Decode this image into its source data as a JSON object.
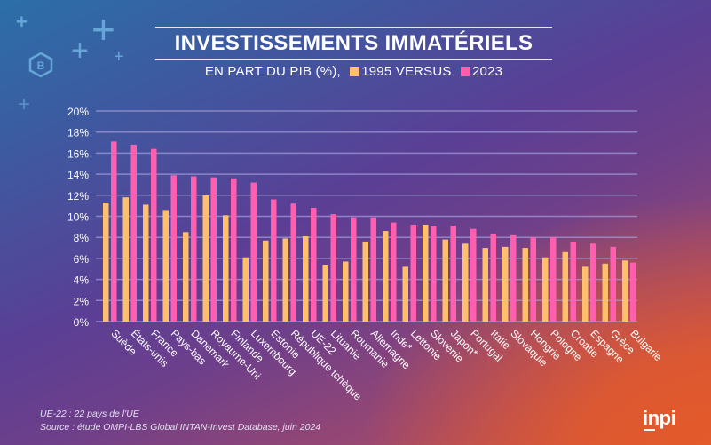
{
  "header": {
    "title": "INVESTISSEMENTS IMMATÉRIELS",
    "subtitle_prefix": "EN PART DU PIB (%),",
    "legend_1995": "1995 VERSUS",
    "legend_2023": "2023"
  },
  "decorations": {
    "badge_letter": "B",
    "plus_glyph": "+"
  },
  "colors": {
    "series_1995": "#ffbf6b",
    "series_2023": "#ff5fae",
    "gridline": "#9f9ad6",
    "text": "#ffffff"
  },
  "chart_data": {
    "type": "bar",
    "title": "INVESTISSEMENTS IMMATÉRIELS",
    "subtitle": "EN PART DU PIB (%), 1995 VERSUS 2023",
    "xlabel": "",
    "ylabel": "",
    "ylim": [
      0,
      20
    ],
    "yticks": [
      0,
      2,
      4,
      6,
      8,
      10,
      12,
      14,
      16,
      18,
      20
    ],
    "ytick_labels": [
      "0%",
      "2%",
      "4%",
      "6%",
      "8%",
      "10%",
      "12%",
      "14%",
      "16%",
      "18%",
      "20%"
    ],
    "grid": true,
    "legend_position": "top-center",
    "categories": [
      "Suède",
      "États-unis",
      "France",
      "Pays-bas",
      "Danemark",
      "Royaume-Uni",
      "Finlande",
      "Luxembourg",
      "Estonie",
      "République tchèque",
      "UE-22",
      "Lituanie",
      "Roumanie",
      "Allemagne",
      "Inde*",
      "Lettonie",
      "Slovénie",
      "Japon*",
      "Portugal",
      "Italie",
      "Slovaquie",
      "Hongrie",
      "Pologne",
      "Croatie",
      "Espagne",
      "Grèce",
      "Bulgarie"
    ],
    "series": [
      {
        "name": "1995",
        "values": [
          11.3,
          11.8,
          11.1,
          10.6,
          8.5,
          12.0,
          10.1,
          6.1,
          7.7,
          7.9,
          8.1,
          5.4,
          5.7,
          7.6,
          8.6,
          5.2,
          9.2,
          7.8,
          7.4,
          7.0,
          7.1,
          7.0,
          6.1,
          6.6,
          5.2,
          5.5,
          5.8
        ]
      },
      {
        "name": "2023",
        "values": [
          17.1,
          16.8,
          16.4,
          13.9,
          13.8,
          13.7,
          13.6,
          13.2,
          11.6,
          11.2,
          10.8,
          10.2,
          9.9,
          9.9,
          9.4,
          9.2,
          9.1,
          9.1,
          8.8,
          8.3,
          8.2,
          8.0,
          8.0,
          7.6,
          7.4,
          7.1,
          5.6
        ]
      }
    ]
  },
  "footer": {
    "note": "UE-22 : 22 pays de l'UE",
    "source": "Source : étude OMPI-LBS Global INTAN-Invest Database, juin 2024",
    "logo": "inpi"
  }
}
